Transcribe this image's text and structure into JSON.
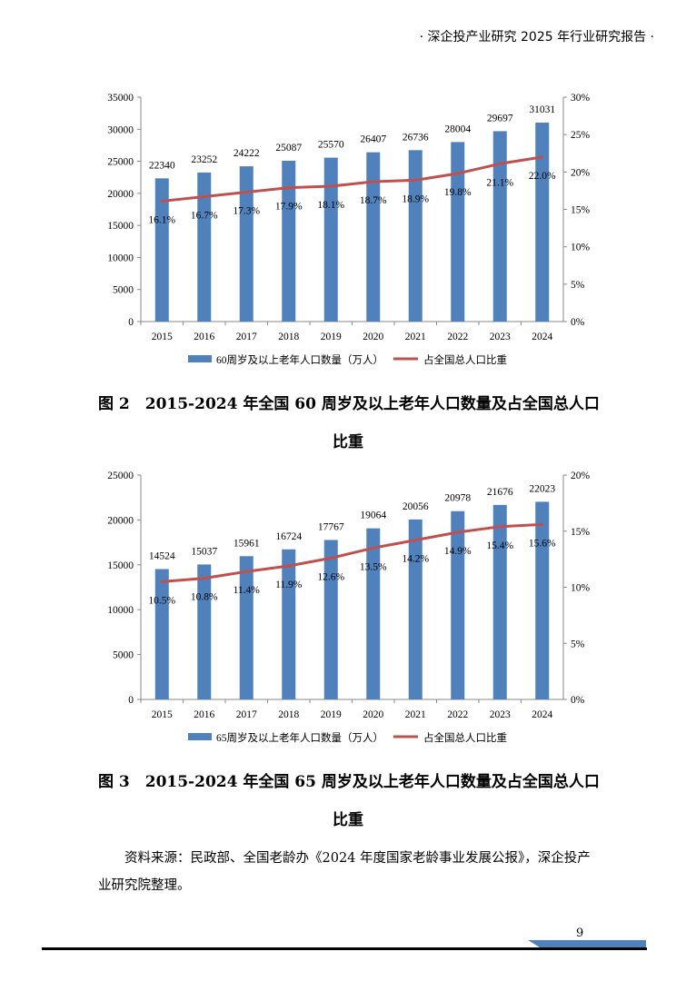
{
  "header": {
    "text": "· 深企投产业研究 2025 年行业研究报告 ·"
  },
  "chart_data": [
    {
      "type": "bar",
      "categories": [
        "2015",
        "2016",
        "2017",
        "2018",
        "2019",
        "2020",
        "2021",
        "2022",
        "2023",
        "2024"
      ],
      "series": [
        {
          "name": "60周岁及以上老年人口数量（万人）",
          "type": "bar",
          "axis": "left",
          "values": [
            22340,
            23252,
            24222,
            25087,
            25570,
            26407,
            26736,
            28004,
            29697,
            31031
          ],
          "color": "#4f81bd"
        },
        {
          "name": "占全国总人口比重",
          "type": "line",
          "axis": "right",
          "values": [
            16.1,
            16.7,
            17.3,
            17.9,
            18.1,
            18.7,
            18.9,
            19.8,
            21.1,
            22.0
          ],
          "color": "#c0504d"
        }
      ],
      "value_labels": [
        "22340",
        "23252",
        "24222",
        "25087",
        "25570",
        "26407",
        "26736",
        "28004",
        "29697",
        "31031"
      ],
      "pct_labels": [
        "16.1%",
        "16.7%",
        "17.3%",
        "17.9%",
        "18.1%",
        "18.7%",
        "18.9%",
        "19.8%",
        "21.1%",
        "22.0%"
      ],
      "ylim": [
        0,
        35000
      ],
      "yticks": [
        "0",
        "5000",
        "10000",
        "15000",
        "20000",
        "25000",
        "30000",
        "35000"
      ],
      "y2lim": [
        0,
        30
      ],
      "y2ticks": [
        "0%",
        "5%",
        "10%",
        "15%",
        "20%",
        "25%",
        "30%"
      ],
      "legend_position": "bottom",
      "grid": false
    },
    {
      "type": "bar",
      "categories": [
        "2015",
        "2016",
        "2017",
        "2018",
        "2019",
        "2020",
        "2021",
        "2022",
        "2023",
        "2024"
      ],
      "series": [
        {
          "name": "65周岁及以上老年人口数量（万人）",
          "type": "bar",
          "axis": "left",
          "values": [
            14524,
            15037,
            15961,
            16724,
            17767,
            19064,
            20056,
            20978,
            21676,
            22023
          ],
          "color": "#4f81bd"
        },
        {
          "name": "占全国总人口比重",
          "type": "line",
          "axis": "right",
          "values": [
            10.5,
            10.8,
            11.4,
            11.9,
            12.6,
            13.5,
            14.2,
            14.9,
            15.4,
            15.6
          ],
          "color": "#c0504d"
        }
      ],
      "value_labels": [
        "14524",
        "15037",
        "15961",
        "16724",
        "17767",
        "19064",
        "20056",
        "20978",
        "21676",
        "22023"
      ],
      "pct_labels": [
        "10.5%",
        "10.8%",
        "11.4%",
        "11.9%",
        "12.6%",
        "13.5%",
        "14.2%",
        "14.9%",
        "15.4%",
        "15.6%"
      ],
      "ylim": [
        0,
        25000
      ],
      "yticks": [
        "0",
        "5000",
        "10000",
        "15000",
        "20000",
        "25000"
      ],
      "y2lim": [
        0,
        20
      ],
      "y2ticks": [
        "0%",
        "5%",
        "10%",
        "15%",
        "20%"
      ],
      "legend_position": "bottom",
      "grid": false
    }
  ],
  "captions": [
    {
      "line1": "图 2　2015-2024 年全国 60 周岁及以上老年人口数量及占全国总人口",
      "line2": "比重"
    },
    {
      "line1": "图 3　2015-2024 年全国 65 周岁及以上老年人口数量及占全国总人口",
      "line2": "比重"
    }
  ],
  "source": "资料来源：民政部、全国老龄办《2024 年度国家老龄事业发展公报》，深企投产业研究院整理。",
  "page_number": "9"
}
